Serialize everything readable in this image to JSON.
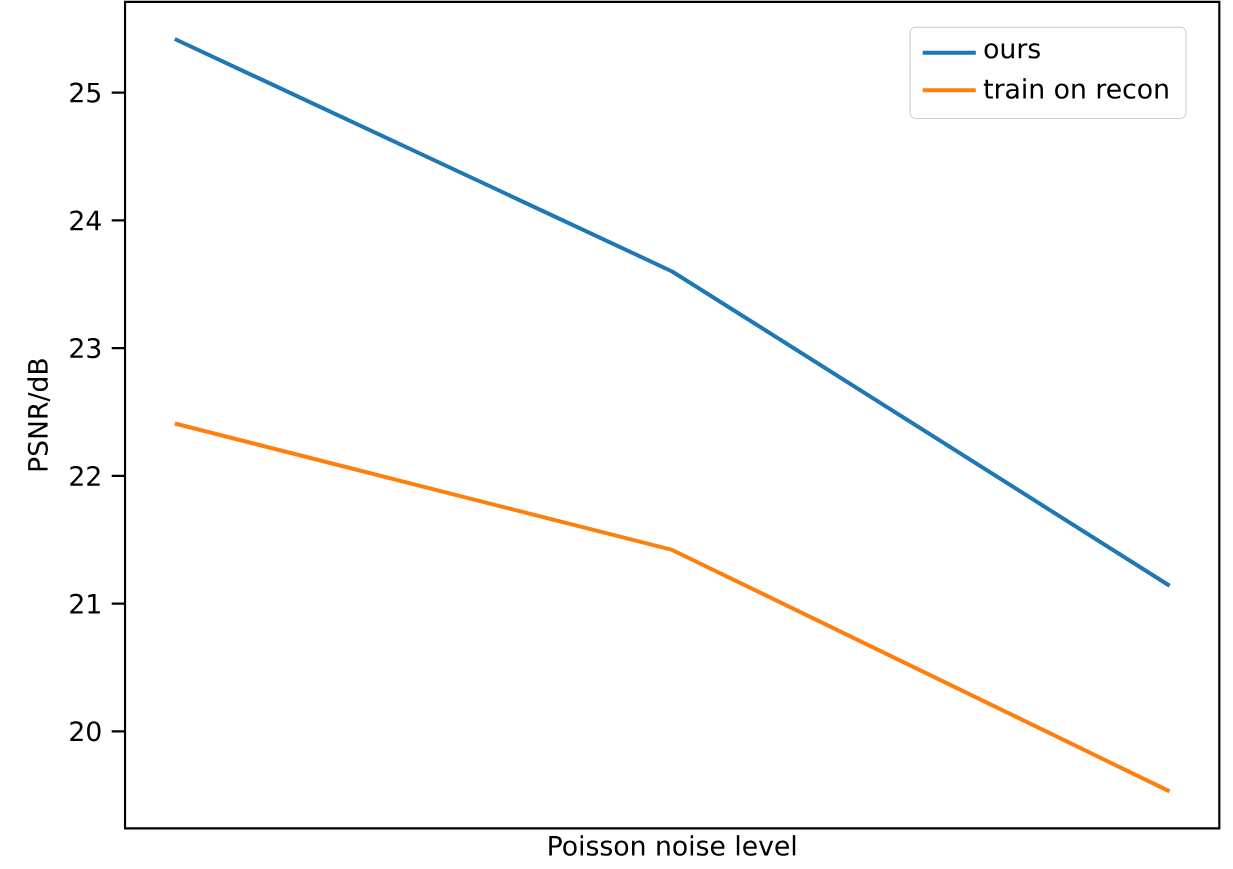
{
  "chart_data": {
    "type": "line",
    "xlabel": "Poisson noise level",
    "ylabel": "PSNR/dB",
    "categories": [
      null,
      null,
      null
    ],
    "series": [
      {
        "name": "ours",
        "color": "#1f77b4",
        "values": [
          25.42,
          23.6,
          21.14
        ]
      },
      {
        "name": "train on recon",
        "color": "#ff7f0e",
        "values": [
          22.41,
          21.42,
          19.53
        ]
      }
    ],
    "ylim": [
      19.24,
      25.71
    ],
    "yticks": [
      20,
      21,
      22,
      23,
      24,
      25
    ],
    "tick_labels": "y",
    "legend": "top right",
    "grid": false,
    "marker": "none",
    "line_style": "solid"
  }
}
